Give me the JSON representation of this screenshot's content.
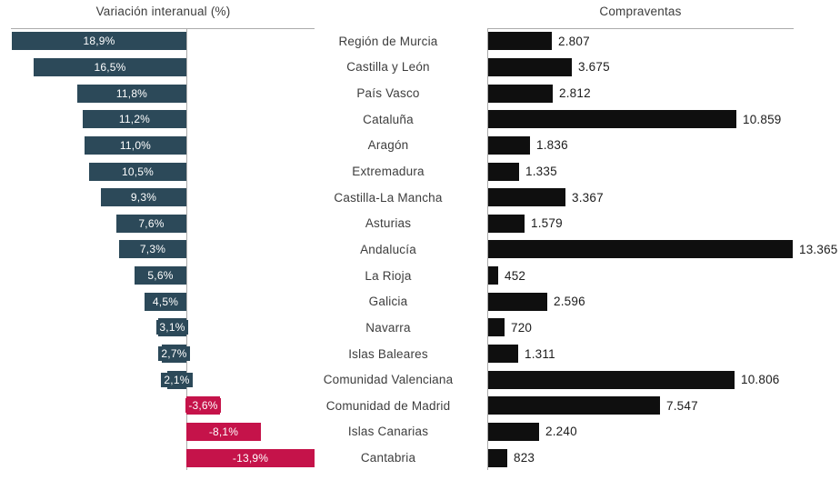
{
  "page": {
    "background": "#ffffff"
  },
  "chart_data": [
    {
      "type": "bar",
      "orientation": "horizontal",
      "title": "Variación interanual (%)",
      "unit": "%",
      "categories": [
        "Región de Murcia",
        "Castilla y León",
        "País Vasco",
        "Cataluña",
        "Aragón",
        "Extremadura",
        "Castilla-La Mancha",
        "Asturias",
        "Andalucía",
        "La Rioja",
        "Galicia",
        "Navarra",
        "Islas Baleares",
        "Comunidad Valenciana",
        "Comunidad de Madrid",
        "Islas Canarias",
        "Cantabria"
      ],
      "values": [
        18.9,
        16.5,
        11.8,
        11.2,
        11.0,
        10.5,
        9.3,
        7.6,
        7.3,
        5.6,
        4.5,
        3.1,
        2.7,
        2.1,
        -3.6,
        -8.1,
        -13.9
      ],
      "value_labels": [
        "18,9%",
        "16,5%",
        "11,8%",
        "11,2%",
        "11,0%",
        "10,5%",
        "9,3%",
        "7,6%",
        "7,3%",
        "5,6%",
        "4,5%",
        "3,1%",
        "2,7%",
        "2,1%",
        "-3,6%",
        "-8,1%",
        "-13,9%"
      ],
      "bar_color_positive": "#2c4959",
      "bar_color_negative": "#c5134a",
      "value_label_color": "#ffffff",
      "axis_color": "#ababab",
      "xlim": [
        -14,
        19
      ],
      "layout_note": "positive bars extend left toward zero line, negative bars extend right",
      "grid": false,
      "legend": false
    },
    {
      "type": "bar",
      "orientation": "horizontal",
      "title": "Compraventas",
      "categories": [
        "Región de Murcia",
        "Castilla y León",
        "País Vasco",
        "Cataluña",
        "Aragón",
        "Extremadura",
        "Castilla-La Mancha",
        "Asturias",
        "Andalucía",
        "La Rioja",
        "Galicia",
        "Navarra",
        "Islas Baleares",
        "Comunidad Valenciana",
        "Comunidad de Madrid",
        "Islas Canarias",
        "Cantabria"
      ],
      "values": [
        2807,
        3675,
        2812,
        10859,
        1836,
        1335,
        3367,
        1579,
        13365,
        452,
        2596,
        720,
        1311,
        10806,
        7547,
        2240,
        823
      ],
      "value_labels": [
        "2.807",
        "3.675",
        "2.812",
        "10.859",
        "1.836",
        "1.335",
        "3.367",
        "1.579",
        "13.365",
        "452",
        "2.596",
        "720",
        "1.311",
        "10.806",
        "7.547",
        "2.240",
        "823"
      ],
      "bar_color": "#0f0f0f",
      "value_label_color": "#1c1c1c",
      "axis_color": "#ababab",
      "xlim": [
        0,
        14000
      ],
      "grid": false,
      "legend": false
    }
  ]
}
